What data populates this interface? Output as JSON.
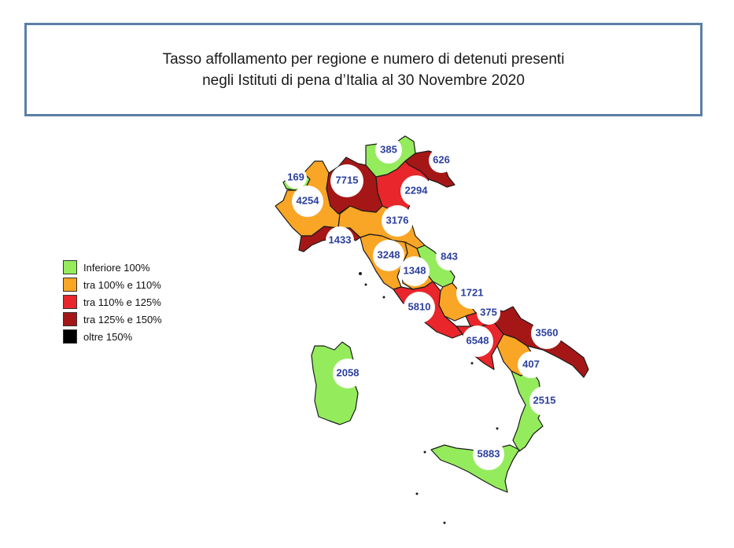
{
  "title": {
    "line1": "Tasso affollamento per regione e numero di detenuti presenti",
    "line2": "negli Istituti di pena d’Italia al 30 Novembre 2020"
  },
  "legend": [
    {
      "label": "Inferiore 100%",
      "color": "#94ec5c"
    },
    {
      "label": "tra 100% e 110%",
      "color": "#f9a525"
    },
    {
      "label": "tra 110% e 125%",
      "color": "#e8262b"
    },
    {
      "label": "tra 125% e 150%",
      "color": "#a51717"
    },
    {
      "label": "oltre 150%",
      "color": "#000000"
    }
  ],
  "regions": [
    {
      "id": "valle-d-aosta",
      "value": "169",
      "category": 0
    },
    {
      "id": "piemonte",
      "value": "4254",
      "category": 1
    },
    {
      "id": "lombardia",
      "value": "7715",
      "category": 3
    },
    {
      "id": "trentino-alto-adige",
      "value": "385",
      "category": 0
    },
    {
      "id": "friuli-venezia-giulia",
      "value": "626",
      "category": 3
    },
    {
      "id": "veneto",
      "value": "2294",
      "category": 2
    },
    {
      "id": "liguria",
      "value": "1433",
      "category": 3
    },
    {
      "id": "emilia-romagna",
      "value": "3176",
      "category": 1
    },
    {
      "id": "toscana",
      "value": "3248",
      "category": 1
    },
    {
      "id": "marche",
      "value": "843",
      "category": 0
    },
    {
      "id": "umbria",
      "value": "1348",
      "category": 1
    },
    {
      "id": "lazio",
      "value": "5810",
      "category": 2
    },
    {
      "id": "abruzzo",
      "value": "1721",
      "category": 1
    },
    {
      "id": "molise",
      "value": "375",
      "category": 2
    },
    {
      "id": "campania",
      "value": "6548",
      "category": 2
    },
    {
      "id": "puglia",
      "value": "3560",
      "category": 3
    },
    {
      "id": "basilicata",
      "value": "407",
      "category": 1
    },
    {
      "id": "calabria",
      "value": "2515",
      "category": 0
    },
    {
      "id": "sicilia",
      "value": "5883",
      "category": 0
    },
    {
      "id": "sardegna",
      "value": "2058",
      "category": 0
    }
  ]
}
